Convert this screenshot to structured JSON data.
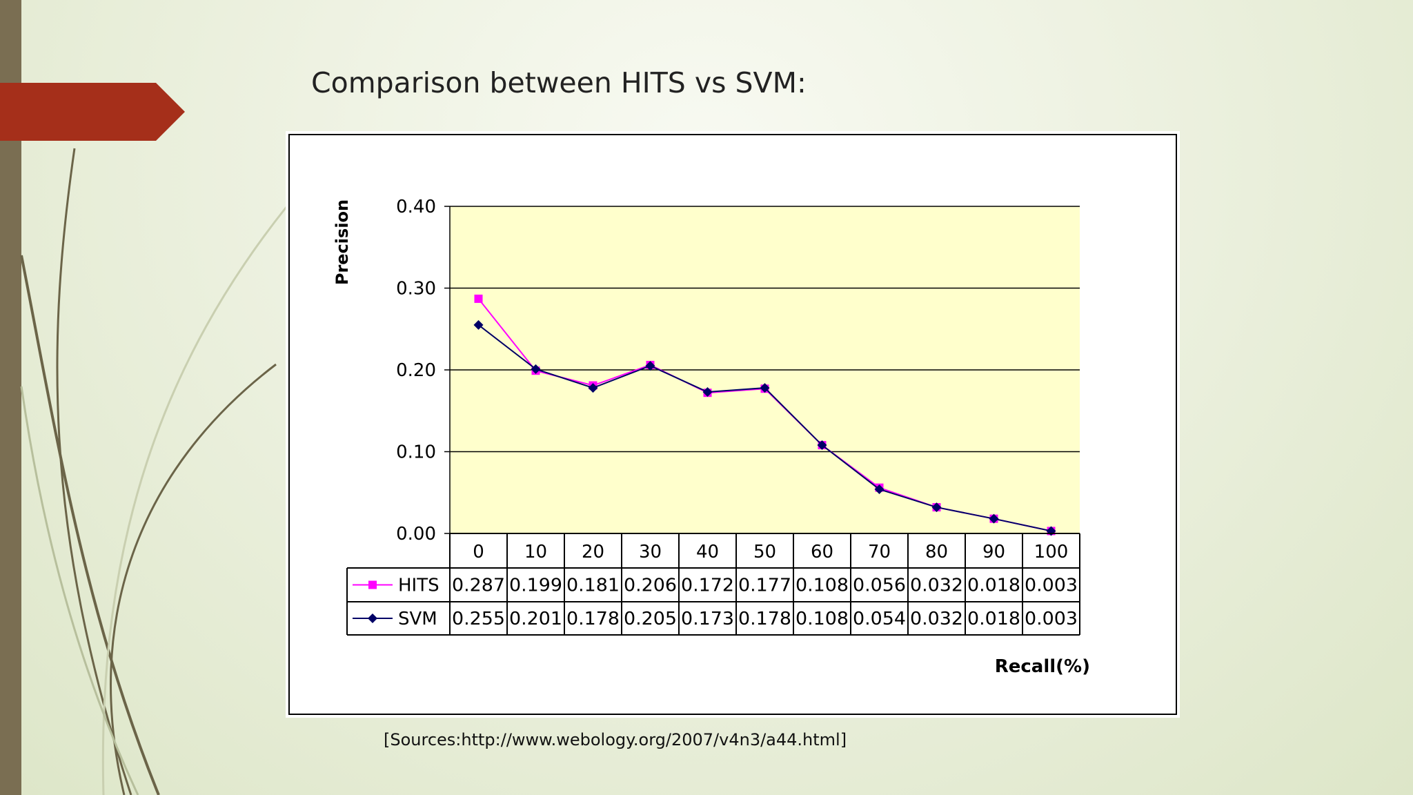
{
  "slide": {
    "title": "Comparison between HITS vs SVM:",
    "source": "[Sources:http://www.webology.org/2007/v4n3/a44.html]"
  },
  "colors": {
    "accent": "#a52f1a",
    "sidebar": "#7a6e52",
    "plot_bg": "#ffffcc",
    "hits": "#ff00ff",
    "svm": "#000066"
  },
  "chart_data": {
    "type": "line",
    "xlabel": "Recall(%)",
    "ylabel": "Precision",
    "ylim": [
      0,
      0.4
    ],
    "yticks": [
      "0.00",
      "0.10",
      "0.20",
      "0.30",
      "0.40"
    ],
    "categories": [
      "0",
      "10",
      "20",
      "30",
      "40",
      "50",
      "60",
      "70",
      "80",
      "90",
      "100"
    ],
    "grid": true,
    "legend": "data-table",
    "series": [
      {
        "name": "HITS",
        "marker": "square",
        "values": [
          0.287,
          0.199,
          0.181,
          0.206,
          0.172,
          0.177,
          0.108,
          0.056,
          0.032,
          0.018,
          0.003
        ],
        "labels": [
          "0.287",
          "0.199",
          "0.181",
          "0.206",
          "0.172",
          "0.177",
          "0.108",
          "0.056",
          "0.032",
          "0.018",
          "0.003"
        ]
      },
      {
        "name": "SVM",
        "marker": "diamond",
        "values": [
          0.255,
          0.201,
          0.178,
          0.205,
          0.173,
          0.178,
          0.108,
          0.054,
          0.032,
          0.018,
          0.003
        ],
        "labels": [
          "0.255",
          "0.201",
          "0.178",
          "0.205",
          "0.173",
          "0.178",
          "0.108",
          "0.054",
          "0.032",
          "0.018",
          "0.003"
        ]
      }
    ]
  }
}
